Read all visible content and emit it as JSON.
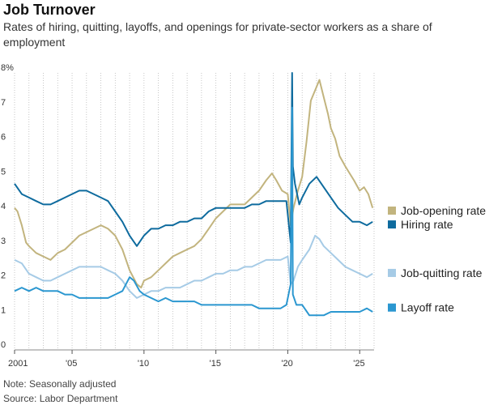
{
  "title": "Job Turnover",
  "subtitle": "Rates of hiring, quitting, layoffs, and openings for private-sector workers as a share of employment",
  "note": "Note: Seasonally adjusted",
  "source": "Source: Labor Department",
  "chart_data": {
    "type": "line",
    "ylim": [
      0,
      8
    ],
    "xlim": [
      2001,
      2026
    ],
    "y_ticks": [
      {
        "v": 8,
        "label": "8%"
      },
      {
        "v": 7,
        "label": "7"
      },
      {
        "v": 6,
        "label": "6"
      },
      {
        "v": 5,
        "label": "5"
      },
      {
        "v": 4,
        "label": "4"
      },
      {
        "v": 3,
        "label": "3"
      },
      {
        "v": 2,
        "label": "2"
      },
      {
        "v": 1,
        "label": "1"
      },
      {
        "v": 0,
        "label": "0"
      }
    ],
    "x_ticks": [
      {
        "v": 2001,
        "label": "2001"
      },
      {
        "v": 2005,
        "label": "'05"
      },
      {
        "v": 2010,
        "label": "'10"
      },
      {
        "v": 2015,
        "label": "'15"
      },
      {
        "v": 2020,
        "label": "'20"
      },
      {
        "v": 2025,
        "label": "'25"
      }
    ],
    "grid": "vertical-dotted",
    "legend": "right",
    "series": [
      {
        "name": "Job-opening rate",
        "color": "#c2b47e",
        "legend_y": 4.0,
        "points": [
          [
            2001.0,
            4.1
          ],
          [
            2001.2,
            4.0
          ],
          [
            2001.5,
            3.6
          ],
          [
            2001.8,
            3.1
          ],
          [
            2002.0,
            3.0
          ],
          [
            2002.5,
            2.8
          ],
          [
            2003.0,
            2.7
          ],
          [
            2003.5,
            2.6
          ],
          [
            2004.0,
            2.8
          ],
          [
            2004.5,
            2.9
          ],
          [
            2005.0,
            3.1
          ],
          [
            2005.5,
            3.3
          ],
          [
            2006.0,
            3.4
          ],
          [
            2006.5,
            3.5
          ],
          [
            2007.0,
            3.6
          ],
          [
            2007.5,
            3.5
          ],
          [
            2008.0,
            3.3
          ],
          [
            2008.5,
            2.9
          ],
          [
            2009.0,
            2.3
          ],
          [
            2009.5,
            1.9
          ],
          [
            2009.8,
            1.8
          ],
          [
            2010.0,
            2.0
          ],
          [
            2010.5,
            2.1
          ],
          [
            2011.0,
            2.3
          ],
          [
            2011.5,
            2.5
          ],
          [
            2012.0,
            2.7
          ],
          [
            2012.5,
            2.8
          ],
          [
            2013.0,
            2.9
          ],
          [
            2013.5,
            3.0
          ],
          [
            2014.0,
            3.2
          ],
          [
            2014.5,
            3.5
          ],
          [
            2015.0,
            3.8
          ],
          [
            2015.5,
            4.0
          ],
          [
            2016.0,
            4.2
          ],
          [
            2016.5,
            4.2
          ],
          [
            2017.0,
            4.2
          ],
          [
            2017.5,
            4.4
          ],
          [
            2018.0,
            4.6
          ],
          [
            2018.5,
            4.9
          ],
          [
            2018.9,
            5.1
          ],
          [
            2019.2,
            4.9
          ],
          [
            2019.6,
            4.6
          ],
          [
            2020.0,
            4.5
          ],
          [
            2020.2,
            3.6
          ],
          [
            2020.4,
            4.1
          ],
          [
            2020.7,
            4.6
          ],
          [
            2021.0,
            5.0
          ],
          [
            2021.3,
            6.0
          ],
          [
            2021.6,
            7.2
          ],
          [
            2022.0,
            7.6
          ],
          [
            2022.2,
            7.8
          ],
          [
            2022.5,
            7.3
          ],
          [
            2022.8,
            6.8
          ],
          [
            2023.0,
            6.4
          ],
          [
            2023.3,
            6.1
          ],
          [
            2023.6,
            5.6
          ],
          [
            2024.0,
            5.3
          ],
          [
            2024.3,
            5.1
          ],
          [
            2024.6,
            4.9
          ],
          [
            2025.0,
            4.6
          ],
          [
            2025.3,
            4.7
          ],
          [
            2025.6,
            4.5
          ],
          [
            2025.9,
            4.1
          ]
        ]
      },
      {
        "name": "Hiring rate",
        "color": "#0e6b9e",
        "legend_y": 3.6,
        "points": [
          [
            2001.0,
            4.8
          ],
          [
            2001.5,
            4.5
          ],
          [
            2002.0,
            4.4
          ],
          [
            2002.5,
            4.3
          ],
          [
            2003.0,
            4.2
          ],
          [
            2003.5,
            4.2
          ],
          [
            2004.0,
            4.3
          ],
          [
            2004.5,
            4.4
          ],
          [
            2005.0,
            4.5
          ],
          [
            2005.5,
            4.6
          ],
          [
            2006.0,
            4.6
          ],
          [
            2006.5,
            4.5
          ],
          [
            2007.0,
            4.4
          ],
          [
            2007.5,
            4.3
          ],
          [
            2008.0,
            4.0
          ],
          [
            2008.5,
            3.7
          ],
          [
            2009.0,
            3.3
          ],
          [
            2009.5,
            3.0
          ],
          [
            2010.0,
            3.3
          ],
          [
            2010.5,
            3.5
          ],
          [
            2011.0,
            3.5
          ],
          [
            2011.5,
            3.6
          ],
          [
            2012.0,
            3.6
          ],
          [
            2012.5,
            3.7
          ],
          [
            2013.0,
            3.7
          ],
          [
            2013.5,
            3.8
          ],
          [
            2014.0,
            3.8
          ],
          [
            2014.5,
            4.0
          ],
          [
            2015.0,
            4.1
          ],
          [
            2015.5,
            4.1
          ],
          [
            2016.0,
            4.1
          ],
          [
            2016.5,
            4.1
          ],
          [
            2017.0,
            4.1
          ],
          [
            2017.5,
            4.2
          ],
          [
            2018.0,
            4.2
          ],
          [
            2018.5,
            4.3
          ],
          [
            2019.0,
            4.3
          ],
          [
            2019.5,
            4.3
          ],
          [
            2019.9,
            4.3
          ],
          [
            2020.2,
            3.1
          ],
          [
            2020.3,
            8.0
          ],
          [
            2020.35,
            5.3
          ],
          [
            2020.5,
            4.8
          ],
          [
            2020.8,
            4.2
          ],
          [
            2021.0,
            4.4
          ],
          [
            2021.5,
            4.8
          ],
          [
            2022.0,
            5.0
          ],
          [
            2022.5,
            4.7
          ],
          [
            2023.0,
            4.4
          ],
          [
            2023.5,
            4.1
          ],
          [
            2024.0,
            3.9
          ],
          [
            2024.5,
            3.7
          ],
          [
            2025.0,
            3.7
          ],
          [
            2025.5,
            3.6
          ],
          [
            2025.9,
            3.7
          ]
        ]
      },
      {
        "name": "Job-quitting rate",
        "color": "#a6cbe6",
        "legend_y": 2.2,
        "points": [
          [
            2001.0,
            2.6
          ],
          [
            2001.5,
            2.5
          ],
          [
            2002.0,
            2.2
          ],
          [
            2002.5,
            2.1
          ],
          [
            2003.0,
            2.0
          ],
          [
            2003.5,
            2.0
          ],
          [
            2004.0,
            2.1
          ],
          [
            2004.5,
            2.2
          ],
          [
            2005.0,
            2.3
          ],
          [
            2005.5,
            2.4
          ],
          [
            2006.0,
            2.4
          ],
          [
            2006.5,
            2.4
          ],
          [
            2007.0,
            2.4
          ],
          [
            2007.5,
            2.3
          ],
          [
            2008.0,
            2.2
          ],
          [
            2008.5,
            2.0
          ],
          [
            2009.0,
            1.7
          ],
          [
            2009.5,
            1.5
          ],
          [
            2010.0,
            1.6
          ],
          [
            2010.5,
            1.7
          ],
          [
            2011.0,
            1.7
          ],
          [
            2011.5,
            1.8
          ],
          [
            2012.0,
            1.8
          ],
          [
            2012.5,
            1.8
          ],
          [
            2013.0,
            1.9
          ],
          [
            2013.5,
            2.0
          ],
          [
            2014.0,
            2.0
          ],
          [
            2014.5,
            2.1
          ],
          [
            2015.0,
            2.2
          ],
          [
            2015.5,
            2.2
          ],
          [
            2016.0,
            2.3
          ],
          [
            2016.5,
            2.3
          ],
          [
            2017.0,
            2.4
          ],
          [
            2017.5,
            2.4
          ],
          [
            2018.0,
            2.5
          ],
          [
            2018.5,
            2.6
          ],
          [
            2019.0,
            2.6
          ],
          [
            2019.5,
            2.6
          ],
          [
            2020.0,
            2.7
          ],
          [
            2020.2,
            1.9
          ],
          [
            2020.4,
            2.0
          ],
          [
            2020.7,
            2.4
          ],
          [
            2021.0,
            2.6
          ],
          [
            2021.5,
            2.9
          ],
          [
            2021.9,
            3.3
          ],
          [
            2022.2,
            3.2
          ],
          [
            2022.5,
            3.0
          ],
          [
            2023.0,
            2.8
          ],
          [
            2023.5,
            2.6
          ],
          [
            2024.0,
            2.4
          ],
          [
            2024.5,
            2.3
          ],
          [
            2025.0,
            2.2
          ],
          [
            2025.5,
            2.1
          ],
          [
            2025.9,
            2.2
          ]
        ]
      },
      {
        "name": "Layoff rate",
        "color": "#2b97d0",
        "legend_y": 1.2,
        "points": [
          [
            2001.0,
            1.7
          ],
          [
            2001.5,
            1.8
          ],
          [
            2002.0,
            1.7
          ],
          [
            2002.5,
            1.8
          ],
          [
            2003.0,
            1.7
          ],
          [
            2003.5,
            1.7
          ],
          [
            2004.0,
            1.7
          ],
          [
            2004.5,
            1.6
          ],
          [
            2005.0,
            1.6
          ],
          [
            2005.5,
            1.5
          ],
          [
            2006.0,
            1.5
          ],
          [
            2006.5,
            1.5
          ],
          [
            2007.0,
            1.5
          ],
          [
            2007.5,
            1.5
          ],
          [
            2008.0,
            1.6
          ],
          [
            2008.5,
            1.7
          ],
          [
            2009.0,
            2.1
          ],
          [
            2009.3,
            2.0
          ],
          [
            2009.7,
            1.7
          ],
          [
            2010.0,
            1.6
          ],
          [
            2010.5,
            1.5
          ],
          [
            2011.0,
            1.4
          ],
          [
            2011.5,
            1.5
          ],
          [
            2012.0,
            1.4
          ],
          [
            2012.5,
            1.4
          ],
          [
            2013.0,
            1.4
          ],
          [
            2013.5,
            1.4
          ],
          [
            2014.0,
            1.3
          ],
          [
            2014.5,
            1.3
          ],
          [
            2015.0,
            1.3
          ],
          [
            2015.5,
            1.3
          ],
          [
            2016.0,
            1.3
          ],
          [
            2016.5,
            1.3
          ],
          [
            2017.0,
            1.3
          ],
          [
            2017.5,
            1.3
          ],
          [
            2018.0,
            1.2
          ],
          [
            2018.5,
            1.2
          ],
          [
            2019.0,
            1.2
          ],
          [
            2019.5,
            1.2
          ],
          [
            2019.9,
            1.3
          ],
          [
            2020.2,
            1.9
          ],
          [
            2020.3,
            7.0
          ],
          [
            2020.35,
            1.6
          ],
          [
            2020.6,
            1.3
          ],
          [
            2021.0,
            1.3
          ],
          [
            2021.5,
            1.0
          ],
          [
            2022.0,
            1.0
          ],
          [
            2022.5,
            1.0
          ],
          [
            2023.0,
            1.1
          ],
          [
            2023.5,
            1.1
          ],
          [
            2024.0,
            1.1
          ],
          [
            2024.5,
            1.1
          ],
          [
            2025.0,
            1.1
          ],
          [
            2025.5,
            1.2
          ],
          [
            2025.9,
            1.1
          ]
        ]
      }
    ]
  }
}
